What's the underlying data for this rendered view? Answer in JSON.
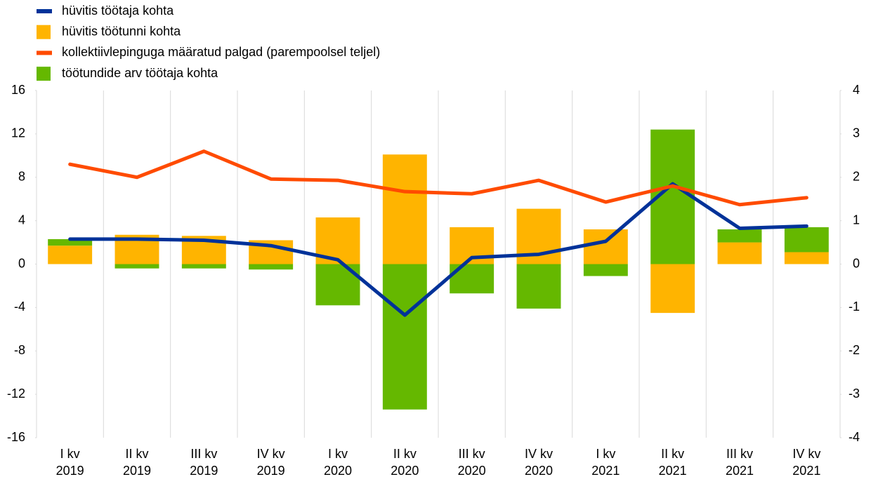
{
  "chart_data": {
    "type": "combo",
    "categories": [
      [
        "I kv",
        "2019"
      ],
      [
        "II kv",
        "2019"
      ],
      [
        "III kv",
        "2019"
      ],
      [
        "IV kv",
        "2019"
      ],
      [
        "I kv",
        "2020"
      ],
      [
        "II kv",
        "2020"
      ],
      [
        "III kv",
        "2020"
      ],
      [
        "IV kv",
        "2020"
      ],
      [
        "I kv",
        "2021"
      ],
      [
        "II kv",
        "2021"
      ],
      [
        "III kv",
        "2021"
      ],
      [
        "IV kv",
        "2021"
      ]
    ],
    "series": [
      {
        "name": "hüvitis töötaja kohta",
        "type": "line",
        "color": "#003299",
        "values": [
          2.3,
          2.3,
          2.2,
          1.7,
          0.4,
          -4.7,
          0.6,
          0.9,
          2.1,
          7.4,
          3.3,
          3.5
        ]
      },
      {
        "name": "hüvitis töötunni kohta",
        "type": "bar",
        "color": "#FFB400",
        "values": [
          1.7,
          2.7,
          2.6,
          2.2,
          4.3,
          10.1,
          3.4,
          5.1,
          3.2,
          -4.5,
          2.0,
          1.1
        ]
      },
      {
        "name": "kollektiivlepinguga määratud palgad (parempoolsel teljel)",
        "type": "line",
        "axis": "y2",
        "color": "#FF4B00",
        "values": [
          2.3,
          2.0,
          2.6,
          1.96,
          1.93,
          1.67,
          1.62,
          1.93,
          1.43,
          1.8,
          1.37,
          1.53
        ]
      },
      {
        "name": "töötundide arv töötaja kohta",
        "type": "bar",
        "color": "#65B800",
        "values": [
          0.6,
          -0.4,
          -0.4,
          -0.5,
          -3.8,
          -13.4,
          -2.7,
          -4.1,
          -1.1,
          12.4,
          1.2,
          2.3
        ]
      }
    ],
    "ylim": [
      -16,
      16
    ],
    "yticks": [
      -16,
      -12,
      -8,
      -4,
      0,
      4,
      8,
      12,
      16
    ],
    "y2lim": [
      -4,
      4
    ],
    "y2ticks": [
      -4,
      -3,
      -2,
      -1,
      0,
      1,
      2,
      3,
      4
    ],
    "grid": true
  }
}
